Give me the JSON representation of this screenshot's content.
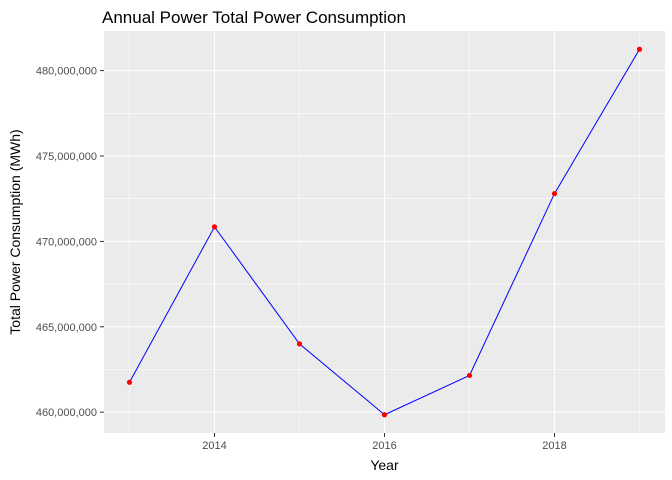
{
  "chart_data": {
    "type": "line",
    "title": "Annual Power Total Power Consumption",
    "xlabel": "Year",
    "ylabel": "Total Power Consumption (MWh)",
    "x": [
      2013,
      2014,
      2015,
      2016,
      2017,
      2018,
      2019
    ],
    "values": [
      461750000,
      470850000,
      464000000,
      459850000,
      462150000,
      472800000,
      481250000
    ],
    "xlim": [
      2012.7,
      2019.3
    ],
    "ylim": [
      458780000,
      482320000
    ],
    "x_ticks": [
      2014,
      2016,
      2018
    ],
    "x_tick_labels": [
      "2014",
      "2016",
      "2018"
    ],
    "y_ticks": [
      460000000,
      465000000,
      470000000,
      475000000,
      480000000
    ],
    "y_tick_labels": [
      "460,000,000",
      "465,000,000",
      "470,000,000",
      "475,000,000",
      "480,000,000"
    ],
    "grid": true,
    "legend": "none",
    "colors": {
      "line": "#0000ff",
      "point": "#ff0000",
      "panel": "#ebebeb",
      "grid": "#ffffff"
    }
  }
}
